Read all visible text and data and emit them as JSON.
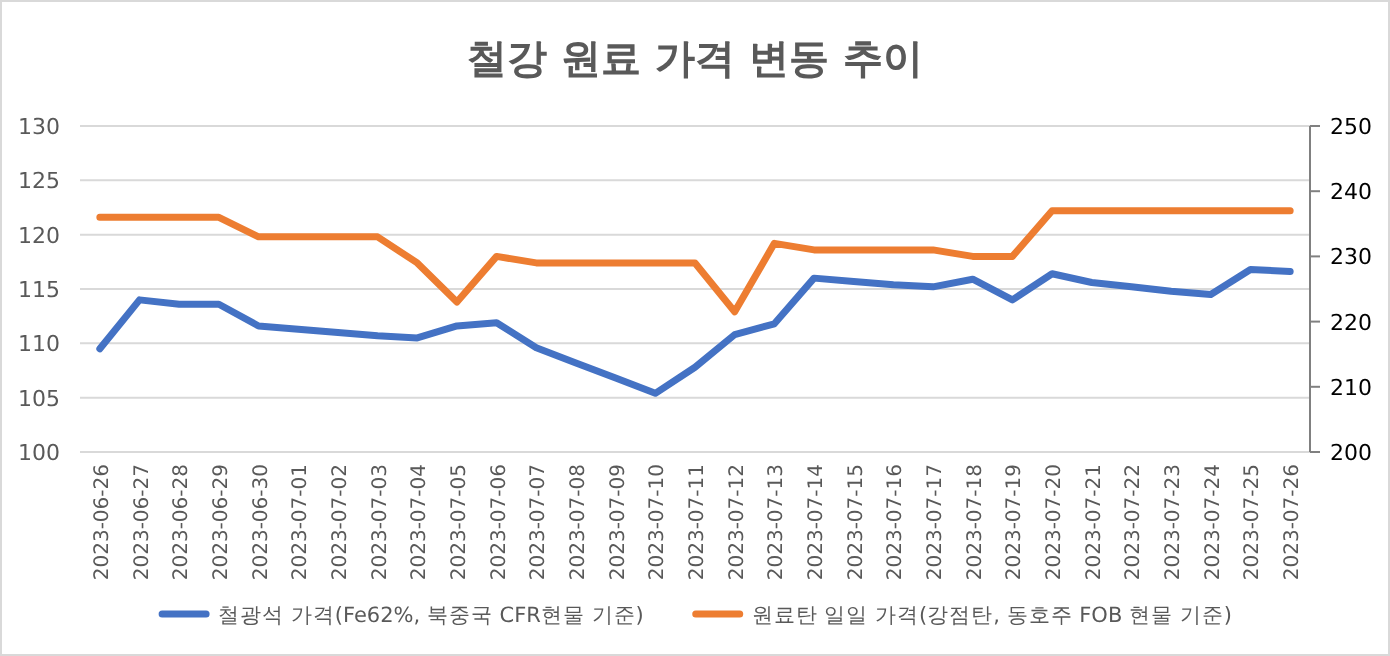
{
  "chart_data": {
    "type": "line",
    "title": "철강 원료 가격 변동 추이",
    "categories": [
      "2023-06-26",
      "2023-06-27",
      "2023-06-28",
      "2023-06-29",
      "2023-06-30",
      "2023-07-01",
      "2023-07-02",
      "2023-07-03",
      "2023-07-04",
      "2023-07-05",
      "2023-07-06",
      "2023-07-07",
      "2023-07-08",
      "2023-07-09",
      "2023-07-10",
      "2023-07-11",
      "2023-07-12",
      "2023-07-13",
      "2023-07-14",
      "2023-07-15",
      "2023-07-16",
      "2023-07-17",
      "2023-07-18",
      "2023-07-19",
      "2023-07-20",
      "2023-07-21",
      "2023-07-22",
      "2023-07-23",
      "2023-07-24",
      "2023-07-25",
      "2023-07-26"
    ],
    "series": [
      {
        "name": "철광석 가격(Fe62%, 북중국 CFR현물 기준)",
        "color": "#4472c4",
        "values": [
          109.5,
          114,
          113.6,
          113.6,
          111.6,
          111.3,
          111.0,
          110.7,
          110.5,
          111.6,
          111.9,
          109.6,
          108.2,
          106.8,
          105.4,
          107.8,
          110.8,
          111.8,
          116,
          115.7,
          115.4,
          115.2,
          115.9,
          114,
          116.4,
          115.6,
          115.2,
          114.8,
          114.5,
          116.8,
          116.6
        ]
      },
      {
        "name": "원료탄 일일 가격(강점탄, 동호주 FOB 현물 기준)",
        "color": "#ed7d31",
        "axis": "y2",
        "values": [
          236,
          236,
          236,
          236,
          233,
          233,
          233,
          233,
          229,
          223,
          230,
          229,
          229,
          229,
          229,
          229,
          221.5,
          232,
          231,
          231,
          231,
          231,
          230,
          230,
          237,
          237,
          237,
          237,
          237,
          237,
          237
        ]
      }
    ],
    "ylim": [
      100,
      130
    ],
    "yticks": [
      100,
      105,
      110,
      115,
      120,
      125,
      130
    ],
    "y2lim": [
      200,
      250
    ],
    "y2ticks": [
      200,
      210,
      220,
      230,
      240,
      250
    ],
    "grid": "y",
    "legend": "bottom"
  }
}
